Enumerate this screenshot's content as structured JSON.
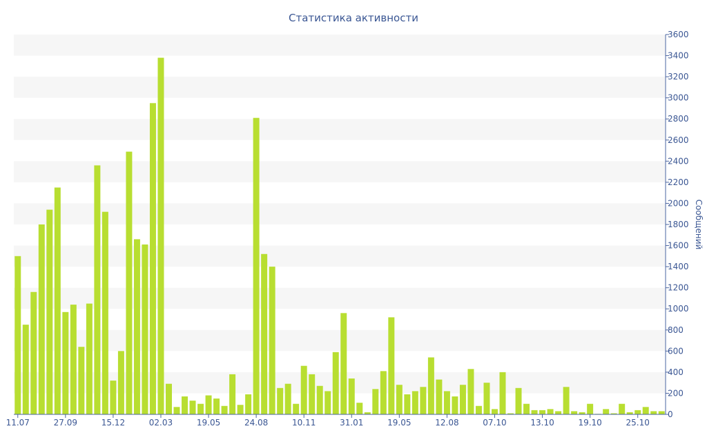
{
  "chart_data": {
    "type": "bar",
    "title": "Статистика активности",
    "ylabel": "Сообщений",
    "xlabel": "",
    "ylim": [
      0,
      3600
    ],
    "y_ticks": [
      0,
      200,
      400,
      600,
      800,
      1000,
      1200,
      1400,
      1600,
      1800,
      2000,
      2200,
      2400,
      2600,
      2800,
      3000,
      3200,
      3400,
      3600
    ],
    "y_axis_side": "right",
    "grid": "alternating horizontal bands",
    "bar_color": "#b8de31",
    "text_color": "#3a5693",
    "x_tick_labels": [
      {
        "index": 0,
        "label": "11.07"
      },
      {
        "index": 6,
        "label": "27.09"
      },
      {
        "index": 12,
        "label": "15.12"
      },
      {
        "index": 18,
        "label": "02.03"
      },
      {
        "index": 24,
        "label": "19.05"
      },
      {
        "index": 30,
        "label": "24.08"
      },
      {
        "index": 36,
        "label": "10.11"
      },
      {
        "index": 42,
        "label": "31.01"
      },
      {
        "index": 48,
        "label": "19.05"
      },
      {
        "index": 54,
        "label": "12.08"
      },
      {
        "index": 60,
        "label": "07.10"
      },
      {
        "index": 66,
        "label": "13.10"
      },
      {
        "index": 72,
        "label": "19.10"
      },
      {
        "index": 78,
        "label": "25.10"
      }
    ],
    "values": [
      1500,
      850,
      1160,
      1800,
      1940,
      2150,
      970,
      1040,
      640,
      1050,
      2360,
      1920,
      320,
      600,
      2490,
      1660,
      1610,
      2950,
      3380,
      290,
      70,
      170,
      130,
      100,
      180,
      150,
      80,
      380,
      90,
      190,
      2810,
      1520,
      1400,
      250,
      290,
      100,
      460,
      380,
      270,
      220,
      590,
      960,
      340,
      110,
      20,
      240,
      410,
      920,
      280,
      190,
      220,
      260,
      540,
      330,
      220,
      170,
      280,
      430,
      80,
      300,
      50,
      400,
      10,
      250,
      100,
      40,
      40,
      50,
      30,
      260,
      30,
      20,
      100,
      5,
      50,
      10,
      100,
      20,
      40,
      70,
      30,
      30
    ]
  }
}
